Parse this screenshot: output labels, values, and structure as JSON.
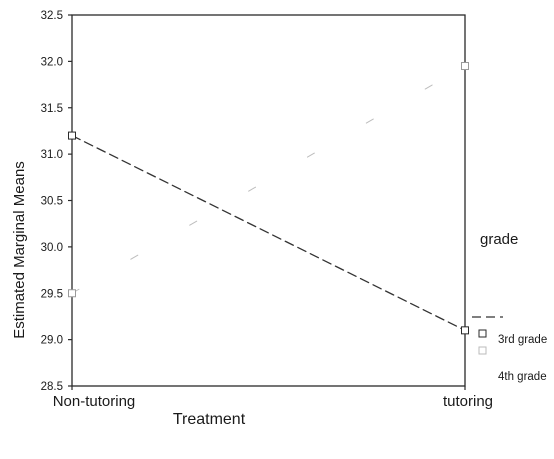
{
  "chart_data": {
    "type": "line",
    "xlabel": "Treatment",
    "ylabel": "Estimated Marginal Means",
    "categories": [
      "Non-tutoring",
      "tutoring"
    ],
    "ylim": [
      28.5,
      32.5
    ],
    "yticks": [
      "28.5",
      "29.0",
      "29.5",
      "30.0",
      "30.5",
      "31.0",
      "31.5",
      "32.0",
      "32.5"
    ],
    "grid": false,
    "legend_title": "grade",
    "legend_position": "right",
    "series": [
      {
        "name": "3rd grade",
        "values": [
          31.2,
          29.1
        ],
        "color": "#333333",
        "style": "dashed",
        "marker": "square"
      },
      {
        "name": "4th grade",
        "values": [
          29.5,
          31.95
        ],
        "color": "#bdbdbd",
        "style": "faint-dashed",
        "marker": "square"
      }
    ]
  }
}
